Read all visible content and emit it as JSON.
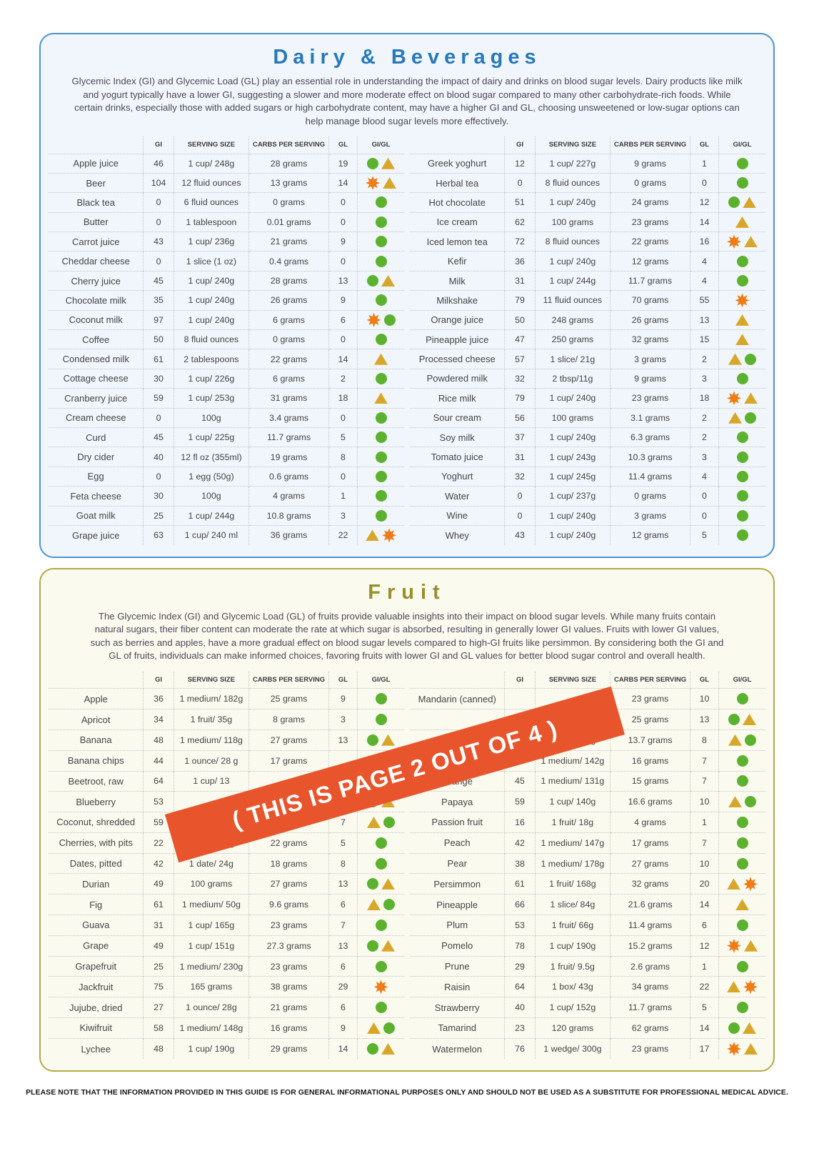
{
  "colors": {
    "dairy-border": "#4a94cc",
    "dairy-bg": "#f0f6fb",
    "dairy-title": "#2879ba",
    "fruit-border": "#b3aa45",
    "fruit-bg": "#fbfaef",
    "fruit-title": "#95902c",
    "green": "#5cb22e",
    "yellow": "#d8a72a",
    "orange": "#ee7c17",
    "banner-bg": "#e8542b",
    "text": "#454545",
    "intro-text": "#4e4858"
  },
  "banner": {
    "text": "( THIS IS PAGE 2 OUT OF 4 )"
  },
  "footer": {
    "text": "PLEASE NOTE THAT THE INFORMATION PROVIDED IN THIS GUIDE IS FOR GENERAL INFORMATIONAL PURPOSES ONLY AND SHOULD NOT BE USED AS A SUBSTITUTE FOR PROFESSIONAL MEDICAL ADVICE."
  },
  "dairy": {
    "title": "Dairy & Beverages",
    "intro": "Glycemic Index (GI) and Glycemic Load (GL) play an essential role in understanding the impact of dairy and drinks on blood sugar levels. Dairy products like milk and yogurt typically have a lower GI, suggesting a slower and more moderate effect on blood sugar compared to many other carbohydrate-rich foods. While certain drinks, especially those with added sugars or high carbohydrate content, may have a higher GI and GL, choosing unsweetened or low-sugar options can help manage blood sugar levels more effectively.",
    "headers": [
      "GI",
      "SERVING SIZE",
      "CARBS PER SERVING",
      "GL",
      "GI/GL"
    ],
    "left_rows": [
      {
        "name": "Apple juice",
        "gi": "46",
        "serving": "1 cup/ 248g",
        "carbs": "28 grams",
        "gl": "19",
        "icons": [
          "green-circle",
          "yellow-triangle"
        ]
      },
      {
        "name": "Beer",
        "gi": "104",
        "serving": "12 fluid ounces",
        "carbs": "13 grams",
        "gl": "14",
        "icons": [
          "orange-burst",
          "yellow-triangle"
        ]
      },
      {
        "name": "Black tea",
        "gi": "0",
        "serving": "6 fluid ounces",
        "carbs": "0 grams",
        "gl": "0",
        "icons": [
          "green-circle"
        ]
      },
      {
        "name": "Butter",
        "gi": "0",
        "serving": "1 tablespoon",
        "carbs": "0.01 grams",
        "gl": "0",
        "icons": [
          "green-circle"
        ]
      },
      {
        "name": "Carrot juice",
        "gi": "43",
        "serving": "1 cup/ 236g",
        "carbs": "21 grams",
        "gl": "9",
        "icons": [
          "green-circle"
        ]
      },
      {
        "name": "Cheddar cheese",
        "gi": "0",
        "serving": "1 slice (1 oz)",
        "carbs": "0.4 grams",
        "gl": "0",
        "icons": [
          "green-circle"
        ]
      },
      {
        "name": "Cherry juice",
        "gi": "45",
        "serving": "1 cup/ 240g",
        "carbs": "28 grams",
        "gl": "13",
        "icons": [
          "green-circle",
          "yellow-triangle"
        ]
      },
      {
        "name": "Chocolate milk",
        "gi": "35",
        "serving": "1 cup/ 240g",
        "carbs": "26 grams",
        "gl": "9",
        "icons": [
          "green-circle"
        ]
      },
      {
        "name": "Coconut milk",
        "gi": "97",
        "serving": "1 cup/ 240g",
        "carbs": "6 grams",
        "gl": "6",
        "icons": [
          "orange-burst",
          "green-circle"
        ]
      },
      {
        "name": "Coffee",
        "gi": "50",
        "serving": "8 fluid ounces",
        "carbs": "0 grams",
        "gl": "0",
        "icons": [
          "green-circle"
        ]
      },
      {
        "name": "Condensed milk",
        "gi": "61",
        "serving": "2 tablespoons",
        "carbs": "22 grams",
        "gl": "14",
        "icons": [
          "yellow-triangle"
        ]
      },
      {
        "name": "Cottage cheese",
        "gi": "30",
        "serving": "1 cup/ 226g",
        "carbs": "6 grams",
        "gl": "2",
        "icons": [
          "green-circle"
        ]
      },
      {
        "name": "Cranberry juice",
        "gi": "59",
        "serving": "1 cup/ 253g",
        "carbs": "31 grams",
        "gl": "18",
        "icons": [
          "yellow-triangle"
        ]
      },
      {
        "name": "Cream cheese",
        "gi": "0",
        "serving": "100g",
        "carbs": "3.4 grams",
        "gl": "0",
        "icons": [
          "green-circle"
        ]
      },
      {
        "name": "Curd",
        "gi": "45",
        "serving": "1 cup/ 225g",
        "carbs": "11.7 grams",
        "gl": "5",
        "icons": [
          "green-circle"
        ]
      },
      {
        "name": "Dry cider",
        "gi": "40",
        "serving": "12 fl oz (355ml)",
        "carbs": "19 grams",
        "gl": "8",
        "icons": [
          "green-circle"
        ]
      },
      {
        "name": "Egg",
        "gi": "0",
        "serving": "1 egg (50g)",
        "carbs": "0.6 grams",
        "gl": "0",
        "icons": [
          "green-circle"
        ]
      },
      {
        "name": "Feta cheese",
        "gi": "30",
        "serving": "100g",
        "carbs": "4 grams",
        "gl": "1",
        "icons": [
          "green-circle"
        ]
      },
      {
        "name": "Goat milk",
        "gi": "25",
        "serving": "1 cup/ 244g",
        "carbs": "10.8 grams",
        "gl": "3",
        "icons": [
          "green-circle"
        ]
      },
      {
        "name": "Grape juice",
        "gi": "63",
        "serving": "1 cup/ 240 ml",
        "carbs": "36 grams",
        "gl": "22",
        "icons": [
          "yellow-triangle",
          "orange-burst"
        ]
      }
    ],
    "right_rows": [
      {
        "name": "Greek yoghurt",
        "gi": "12",
        "serving": "1 cup/ 227g",
        "carbs": "9 grams",
        "gl": "1",
        "icons": [
          "green-circle"
        ]
      },
      {
        "name": "Herbal tea",
        "gi": "0",
        "serving": "8 fluid ounces",
        "carbs": "0 grams",
        "gl": "0",
        "icons": [
          "green-circle"
        ]
      },
      {
        "name": "Hot chocolate",
        "gi": "51",
        "serving": "1 cup/ 240g",
        "carbs": "24 grams",
        "gl": "12",
        "icons": [
          "green-circle",
          "yellow-triangle"
        ]
      },
      {
        "name": "Ice cream",
        "gi": "62",
        "serving": "100 grams",
        "carbs": "23 grams",
        "gl": "14",
        "icons": [
          "yellow-triangle"
        ]
      },
      {
        "name": "Iced lemon tea",
        "gi": "72",
        "serving": "8 fluid ounces",
        "carbs": "22 grams",
        "gl": "16",
        "icons": [
          "orange-burst",
          "yellow-triangle"
        ]
      },
      {
        "name": "Kefir",
        "gi": "36",
        "serving": "1 cup/ 240g",
        "carbs": "12 grams",
        "gl": "4",
        "icons": [
          "green-circle"
        ]
      },
      {
        "name": "Milk",
        "gi": "31",
        "serving": "1 cup/ 244g",
        "carbs": "11.7 grams",
        "gl": "4",
        "icons": [
          "green-circle"
        ]
      },
      {
        "name": "Milkshake",
        "gi": "79",
        "serving": "11 fluid ounces",
        "carbs": "70 grams",
        "gl": "55",
        "icons": [
          "orange-burst"
        ]
      },
      {
        "name": "Orange juice",
        "gi": "50",
        "serving": "248 grams",
        "carbs": "26 grams",
        "gl": "13",
        "icons": [
          "yellow-triangle"
        ]
      },
      {
        "name": "Pineapple juice",
        "gi": "47",
        "serving": "250 grams",
        "carbs": "32 grams",
        "gl": "15",
        "icons": [
          "yellow-triangle"
        ]
      },
      {
        "name": "Processed cheese",
        "gi": "57",
        "serving": "1 slice/ 21g",
        "carbs": "3 grams",
        "gl": "2",
        "icons": [
          "yellow-triangle",
          "green-circle"
        ]
      },
      {
        "name": "Powdered milk",
        "gi": "32",
        "serving": "2 tbsp/11g",
        "carbs": "9 grams",
        "gl": "3",
        "icons": [
          "green-circle"
        ]
      },
      {
        "name": "Rice milk",
        "gi": "79",
        "serving": "1 cup/ 240g",
        "carbs": "23 grams",
        "gl": "18",
        "icons": [
          "orange-burst",
          "yellow-triangle"
        ]
      },
      {
        "name": "Sour cream",
        "gi": "56",
        "serving": "100 grams",
        "carbs": "3.1 grams",
        "gl": "2",
        "icons": [
          "yellow-triangle",
          "green-circle"
        ]
      },
      {
        "name": "Soy milk",
        "gi": "37",
        "serving": "1 cup/ 240g",
        "carbs": "6.3 grams",
        "gl": "2",
        "icons": [
          "green-circle"
        ]
      },
      {
        "name": "Tomato juice",
        "gi": "31",
        "serving": "1 cup/ 243g",
        "carbs": "10.3 grams",
        "gl": "3",
        "icons": [
          "green-circle"
        ]
      },
      {
        "name": "Yoghurt",
        "gi": "32",
        "serving": "1 cup/ 245g",
        "carbs": "11.4 grams",
        "gl": "4",
        "icons": [
          "green-circle"
        ]
      },
      {
        "name": "Water",
        "gi": "0",
        "serving": "1 cup/ 237g",
        "carbs": "0 grams",
        "gl": "0",
        "icons": [
          "green-circle"
        ]
      },
      {
        "name": "Wine",
        "gi": "0",
        "serving": "1 cup/ 240g",
        "carbs": "3 grams",
        "gl": "0",
        "icons": [
          "green-circle"
        ]
      },
      {
        "name": "Whey",
        "gi": "43",
        "serving": "1 cup/ 240g",
        "carbs": "12 grams",
        "gl": "5",
        "icons": [
          "green-circle"
        ]
      }
    ]
  },
  "fruit": {
    "title": "Fruit",
    "intro": "The Glycemic Index (GI) and Glycemic Load (GL) of fruits provide valuable insights into their impact on blood sugar levels. While many fruits contain natural sugars, their fiber content can moderate the rate at which sugar is absorbed, resulting in generally lower GI values. Fruits with lower GI values, such as berries and apples, have a more gradual effect on blood sugar levels compared to high-GI fruits like persimmon. By considering both the GI and GL of fruits, individuals can make informed choices, favoring fruits with lower GI and GL values for better blood sugar control and overall health.",
    "headers": [
      "GI",
      "SERVING SIZE",
      "CARBS PER SERVING",
      "GL",
      "GI/GL"
    ],
    "left_rows": [
      {
        "name": "Apple",
        "gi": "36",
        "serving": "1 medium/ 182g",
        "carbs": "25 grams",
        "gl": "9",
        "icons": [
          "green-circle"
        ]
      },
      {
        "name": "Apricot",
        "gi": "34",
        "serving": "1 fruit/ 35g",
        "carbs": "8 grams",
        "gl": "3",
        "icons": [
          "green-circle"
        ]
      },
      {
        "name": "Banana",
        "gi": "48",
        "serving": "1 medium/ 118g",
        "carbs": "27 grams",
        "gl": "13",
        "icons": [
          "green-circle",
          "yellow-triangle"
        ]
      },
      {
        "name": "Banana chips",
        "gi": "44",
        "serving": "1 ounce/ 28 g",
        "carbs": "17 grams",
        "gl": "",
        "icons": []
      },
      {
        "name": "Beetroot, raw",
        "gi": "64",
        "serving": "1 cup/ 13",
        "carbs": "",
        "gl": "",
        "icons": []
      },
      {
        "name": "Blueberry",
        "gi": "53",
        "serving": "",
        "carbs": "",
        "gl": "",
        "icons": [
          "green-circle",
          "yellow-triangle"
        ]
      },
      {
        "name": "Coconut, shredded",
        "gi": "59",
        "serving": "",
        "carbs": "12 grams",
        "gl": "7",
        "icons": [
          "yellow-triangle",
          "green-circle"
        ]
      },
      {
        "name": "Cherries, with pits",
        "gi": "22",
        "serving": "1 cup/ 138g",
        "carbs": "22 grams",
        "gl": "5",
        "icons": [
          "green-circle"
        ]
      },
      {
        "name": "Dates, pitted",
        "gi": "42",
        "serving": "1 date/ 24g",
        "carbs": "18 grams",
        "gl": "8",
        "icons": [
          "green-circle"
        ]
      },
      {
        "name": "Durian",
        "gi": "49",
        "serving": "100 grams",
        "carbs": "27 grams",
        "gl": "13",
        "icons": [
          "green-circle",
          "yellow-triangle"
        ]
      },
      {
        "name": "Fig",
        "gi": "61",
        "serving": "1 medium/ 50g",
        "carbs": "9.6 grams",
        "gl": "6",
        "icons": [
          "yellow-triangle",
          "green-circle"
        ]
      },
      {
        "name": "Guava",
        "gi": "31",
        "serving": "1 cup/ 165g",
        "carbs": "23 grams",
        "gl": "7",
        "icons": [
          "green-circle"
        ]
      },
      {
        "name": "Grape",
        "gi": "49",
        "serving": "1 cup/ 151g",
        "carbs": "27.3 grams",
        "gl": "13",
        "icons": [
          "green-circle",
          "yellow-triangle"
        ]
      },
      {
        "name": "Grapefruit",
        "gi": "25",
        "serving": "1 medium/ 230g",
        "carbs": "23 grams",
        "gl": "6",
        "icons": [
          "green-circle"
        ]
      },
      {
        "name": "Jackfruit",
        "gi": "75",
        "serving": "165 grams",
        "carbs": "38 grams",
        "gl": "29",
        "icons": [
          "orange-burst"
        ]
      },
      {
        "name": "Jujube, dried",
        "gi": "27",
        "serving": "1 ounce/ 28g",
        "carbs": "21 grams",
        "gl": "6",
        "icons": [
          "green-circle"
        ]
      },
      {
        "name": "Kiwifruit",
        "gi": "58",
        "serving": "1 medium/ 148g",
        "carbs": "16 grams",
        "gl": "9",
        "icons": [
          "yellow-triangle",
          "green-circle"
        ]
      },
      {
        "name": "Lychee",
        "gi": "48",
        "serving": "1 cup/ 190g",
        "carbs": "29 grams",
        "gl": "14",
        "icons": [
          "green-circle",
          "yellow-triangle"
        ]
      }
    ],
    "right_rows": [
      {
        "name": "Mandarin (canned)",
        "gi": "",
        "serving": "",
        "carbs": "23 grams",
        "gl": "10",
        "icons": [
          "green-circle"
        ]
      },
      {
        "name": "",
        "gi": "",
        "serving": "",
        "carbs": "25 grams",
        "gl": "13",
        "icons": [
          "green-circle",
          "yellow-triangle"
        ]
      },
      {
        "name": "",
        "gi": "",
        "serving": "1 cup/ 177g",
        "carbs": "13.7 grams",
        "gl": "8",
        "icons": [
          "yellow-triangle",
          "green-circle"
        ]
      },
      {
        "name": "",
        "gi": "43",
        "serving": "1 medium/ 142g",
        "carbs": "16 grams",
        "gl": "7",
        "icons": [
          "green-circle"
        ]
      },
      {
        "name": "Orange",
        "gi": "45",
        "serving": "1 medium/ 131g",
        "carbs": "15 grams",
        "gl": "7",
        "icons": [
          "green-circle"
        ]
      },
      {
        "name": "Papaya",
        "gi": "59",
        "serving": "1 cup/ 140g",
        "carbs": "16.6 grams",
        "gl": "10",
        "icons": [
          "yellow-triangle",
          "green-circle"
        ]
      },
      {
        "name": "Passion fruit",
        "gi": "16",
        "serving": "1 fruit/ 18g",
        "carbs": "4 grams",
        "gl": "1",
        "icons": [
          "green-circle"
        ]
      },
      {
        "name": "Peach",
        "gi": "42",
        "serving": "1 medium/ 147g",
        "carbs": "17 grams",
        "gl": "7",
        "icons": [
          "green-circle"
        ]
      },
      {
        "name": "Pear",
        "gi": "38",
        "serving": "1 medium/ 178g",
        "carbs": "27 grams",
        "gl": "10",
        "icons": [
          "green-circle"
        ]
      },
      {
        "name": "Persimmon",
        "gi": "61",
        "serving": "1 fruit/ 168g",
        "carbs": "32 grams",
        "gl": "20",
        "icons": [
          "yellow-triangle",
          "orange-burst"
        ]
      },
      {
        "name": "Pineapple",
        "gi": "66",
        "serving": "1 slice/ 84g",
        "carbs": "21.6 grams",
        "gl": "14",
        "icons": [
          "yellow-triangle"
        ]
      },
      {
        "name": "Plum",
        "gi": "53",
        "serving": "1 fruit/ 66g",
        "carbs": "11.4 grams",
        "gl": "6",
        "icons": [
          "green-circle"
        ]
      },
      {
        "name": "Pomelo",
        "gi": "78",
        "serving": "1 cup/ 190g",
        "carbs": "15.2 grams",
        "gl": "12",
        "icons": [
          "orange-burst",
          "yellow-triangle"
        ]
      },
      {
        "name": "Prune",
        "gi": "29",
        "serving": "1 fruit/ 9.5g",
        "carbs": "2.6 grams",
        "gl": "1",
        "icons": [
          "green-circle"
        ]
      },
      {
        "name": "Raisin",
        "gi": "64",
        "serving": "1 box/ 43g",
        "carbs": "34 grams",
        "gl": "22",
        "icons": [
          "yellow-triangle",
          "orange-burst"
        ]
      },
      {
        "name": "Strawberry",
        "gi": "40",
        "serving": "1 cup/ 152g",
        "carbs": "11.7 grams",
        "gl": "5",
        "icons": [
          "green-circle"
        ]
      },
      {
        "name": "Tamarind",
        "gi": "23",
        "serving": "120 grams",
        "carbs": "62 grams",
        "gl": "14",
        "icons": [
          "green-circle",
          "yellow-triangle"
        ]
      },
      {
        "name": "Watermelon",
        "gi": "76",
        "serving": "1 wedge/ 300g",
        "carbs": "23 grams",
        "gl": "17",
        "icons": [
          "orange-burst",
          "yellow-triangle"
        ]
      }
    ]
  }
}
